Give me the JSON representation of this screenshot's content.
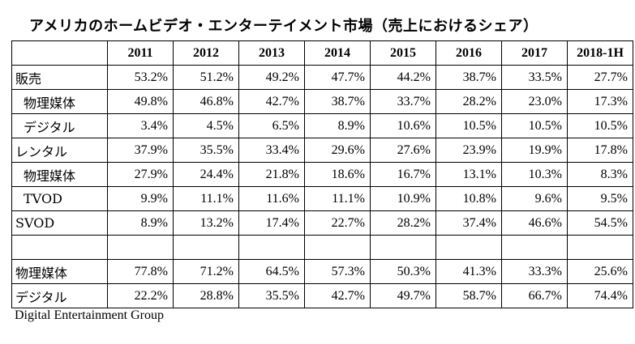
{
  "title": "アメリカのホームビデオ・エンターテイメント市場（売上におけるシェア）",
  "table": {
    "columns": [
      "",
      "2011",
      "2012",
      "2013",
      "2014",
      "2015",
      "2016",
      "2017",
      "2018-1H"
    ],
    "rows": [
      {
        "label": "販売",
        "indent": false,
        "values": [
          "53.2%",
          "51.2%",
          "49.2%",
          "47.7%",
          "44.2%",
          "38.7%",
          "33.5%",
          "27.7%"
        ]
      },
      {
        "label": "物理媒体",
        "indent": true,
        "values": [
          "49.8%",
          "46.8%",
          "42.7%",
          "38.7%",
          "33.7%",
          "28.2%",
          "23.0%",
          "17.3%"
        ]
      },
      {
        "label": "デジタル",
        "indent": true,
        "values": [
          "3.4%",
          "4.5%",
          "6.5%",
          "8.9%",
          "10.6%",
          "10.5%",
          "10.5%",
          "10.5%"
        ]
      },
      {
        "label": "レンタル",
        "indent": false,
        "values": [
          "37.9%",
          "35.5%",
          "33.4%",
          "29.6%",
          "27.6%",
          "23.9%",
          "19.9%",
          "17.8%"
        ]
      },
      {
        "label": "物理媒体",
        "indent": true,
        "values": [
          "27.9%",
          "24.4%",
          "21.8%",
          "18.6%",
          "16.7%",
          "13.1%",
          "10.3%",
          "8.3%"
        ]
      },
      {
        "label": "TVOD",
        "indent": true,
        "values": [
          "9.9%",
          "11.1%",
          "11.6%",
          "11.1%",
          "10.9%",
          "10.8%",
          "9.6%",
          "9.5%"
        ]
      },
      {
        "label": "SVOD",
        "indent": false,
        "values": [
          "8.9%",
          "13.2%",
          "17.4%",
          "22.7%",
          "28.2%",
          "37.4%",
          "46.6%",
          "54.5%"
        ]
      },
      {
        "label": "",
        "indent": false,
        "values": [
          "",
          "",
          "",
          "",
          "",
          "",
          "",
          ""
        ]
      },
      {
        "label": "物理媒体",
        "indent": false,
        "values": [
          "77.8%",
          "71.2%",
          "64.5%",
          "57.3%",
          "50.3%",
          "41.3%",
          "33.3%",
          "25.6%"
        ]
      },
      {
        "label": "デジタル",
        "indent": false,
        "values": [
          "22.2%",
          "28.8%",
          "35.5%",
          "42.7%",
          "49.7%",
          "58.7%",
          "66.7%",
          "74.4%"
        ]
      }
    ]
  },
  "source": "Digital Entertainment Group"
}
